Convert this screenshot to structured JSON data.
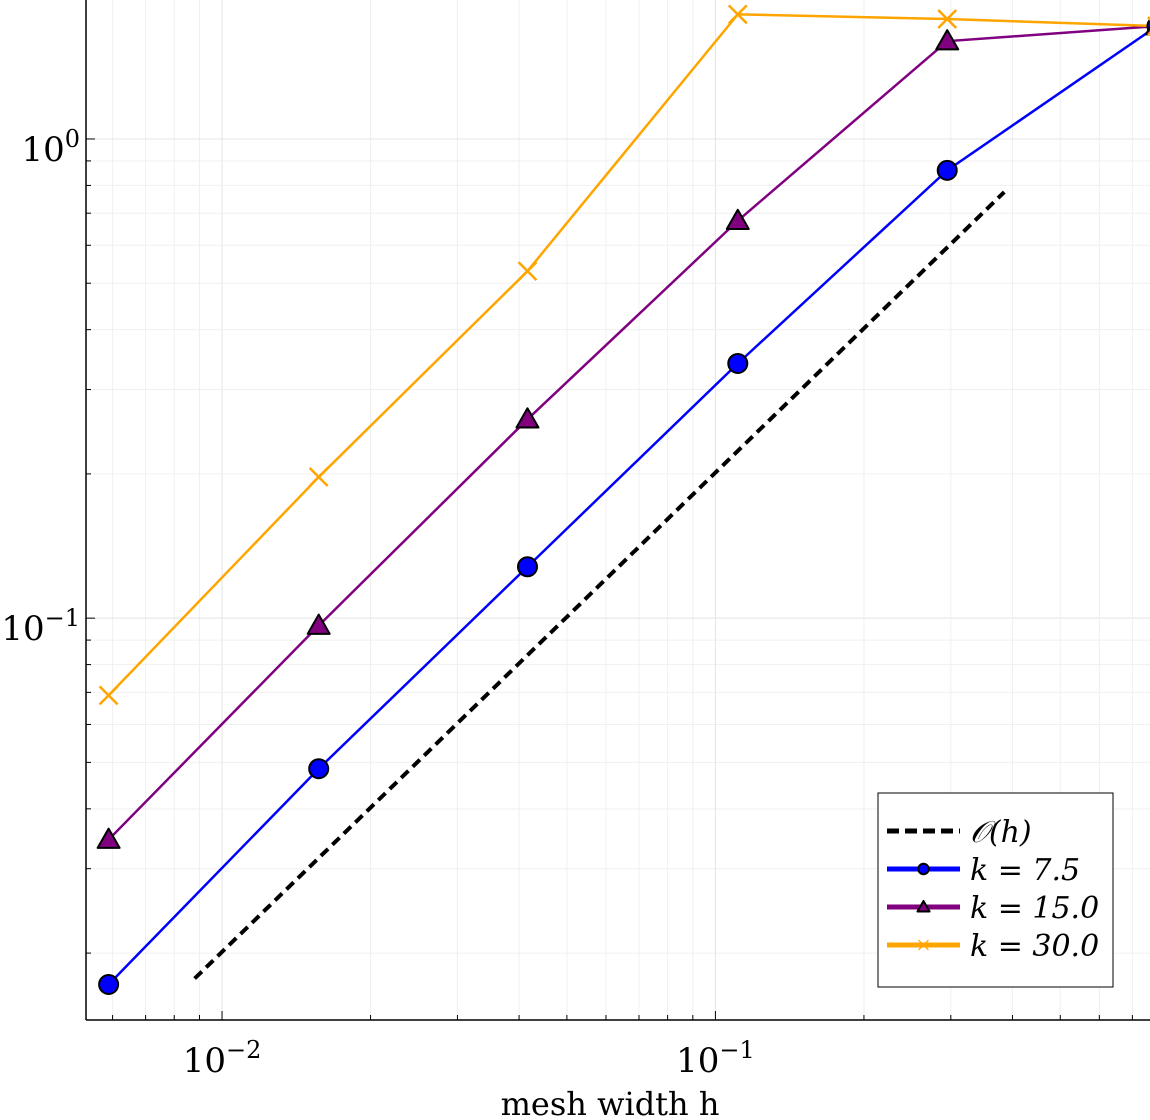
{
  "chart_data": {
    "type": "line",
    "title": "",
    "xlabel": "mesh width h",
    "ylabel": "",
    "xscale": "log",
    "yscale": "log",
    "xlim": [
      0.0053,
      0.76
    ],
    "ylim": [
      0.0145,
      1.95
    ],
    "x_ticks": [
      {
        "value": 0.01,
        "base": "10",
        "exp": "−2"
      },
      {
        "value": 0.1,
        "base": "10",
        "exp": "−1"
      }
    ],
    "y_ticks": [
      {
        "value": 0.1,
        "base": "10",
        "exp": "−1"
      },
      {
        "value": 1.0,
        "base": "10",
        "exp": "0"
      }
    ],
    "grid": true,
    "legend_position": "bottom-right",
    "reference": {
      "name": "𝒪(h)",
      "color": "#000000",
      "style": "dashed",
      "x": [
        0.0088,
        0.385
      ],
      "y": [
        0.0177,
        0.775
      ]
    },
    "series": [
      {
        "name": "k = 7.5",
        "color": "#0000ff",
        "marker": "circle",
        "x": [
          0.00589,
          0.0157,
          0.0416,
          0.111,
          0.295,
          0.785
        ],
        "y": [
          0.0172,
          0.0485,
          0.128,
          0.34,
          0.86,
          1.72
        ]
      },
      {
        "name": "k = 15.0",
        "color": "#800080",
        "marker": "triangle",
        "x": [
          0.00589,
          0.0157,
          0.0416,
          0.111,
          0.295,
          0.785
        ],
        "y": [
          0.0345,
          0.0965,
          0.26,
          0.675,
          1.6,
          1.72
        ]
      },
      {
        "name": "k = 30.0",
        "color": "#ffa500",
        "marker": "x",
        "x": [
          0.00589,
          0.0157,
          0.0416,
          0.111,
          0.295,
          0.785
        ],
        "y": [
          0.069,
          0.197,
          0.53,
          1.82,
          1.78,
          1.72
        ]
      }
    ]
  }
}
